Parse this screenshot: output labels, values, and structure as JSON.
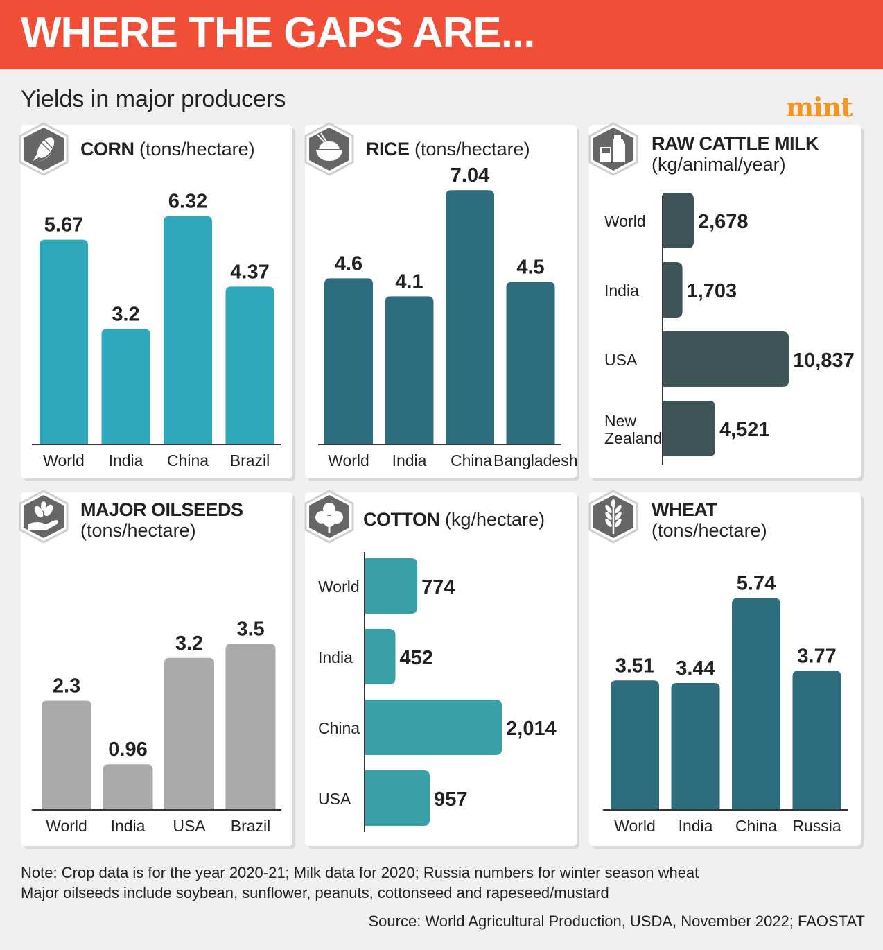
{
  "header": {
    "title": "WHERE THE GAPS ARE...",
    "subtitle": "Yields in major producers",
    "brand": "mint"
  },
  "colors": {
    "banner": "#f04e37",
    "brand": "#f7941d",
    "corn": "#2ea8b8",
    "rice": "#2e6d7e",
    "milk": "#3f5459",
    "oilseeds": "#aaaaaa",
    "cotton": "#38a0a6",
    "wheat": "#2e6d7e"
  },
  "panels": {
    "corn": {
      "title_bold": "CORN",
      "title_unit": "(tons/hectare)",
      "icon": "corn-icon"
    },
    "rice": {
      "title_bold": "RICE",
      "title_unit": "(tons/hectare)",
      "icon": "rice-bowl-icon"
    },
    "milk": {
      "title_bold": "RAW CATTLE MILK",
      "title_unit": "(kg/animal/year)",
      "icon": "milk-icon"
    },
    "oilseeds": {
      "title_bold": "MAJOR OILSEEDS",
      "title_unit": "(tons/hectare)",
      "icon": "seedling-hand-icon"
    },
    "cotton": {
      "title_bold": "COTTON",
      "title_unit": "(kg/hectare)",
      "icon": "cotton-flower-icon"
    },
    "wheat": {
      "title_bold": "WHEAT",
      "title_unit": "(tons/hectare)",
      "icon": "wheat-icon"
    }
  },
  "chart_data": [
    {
      "id": "corn",
      "type": "bar",
      "categories": [
        "World",
        "India",
        "China",
        "Brazil"
      ],
      "values": [
        5.67,
        3.2,
        6.32,
        4.37
      ],
      "labels": [
        "5.67",
        "3.2",
        "6.32",
        "4.37"
      ]
    },
    {
      "id": "rice",
      "type": "bar",
      "categories": [
        "World",
        "India",
        "China",
        "Bangladesh"
      ],
      "values": [
        4.6,
        4.1,
        7.04,
        4.5
      ],
      "labels": [
        "4.6",
        "4.1",
        "7.04",
        "4.5"
      ]
    },
    {
      "id": "milk",
      "type": "bar",
      "orientation": "horizontal",
      "categories": [
        "World",
        "India",
        "USA",
        "New Zealand"
      ],
      "values": [
        2678,
        1703,
        10837,
        4521
      ],
      "labels": [
        "2,678",
        "1,703",
        "10,837",
        "4,521"
      ]
    },
    {
      "id": "oilseeds",
      "type": "bar",
      "categories": [
        "World",
        "India",
        "USA",
        "Brazil"
      ],
      "values": [
        2.3,
        0.96,
        3.2,
        3.5
      ],
      "labels": [
        "2.3",
        "0.96",
        "3.2",
        "3.5"
      ]
    },
    {
      "id": "cotton",
      "type": "bar",
      "orientation": "horizontal",
      "categories": [
        "World",
        "India",
        "China",
        "USA"
      ],
      "values": [
        774,
        452,
        2014,
        957
      ],
      "labels": [
        "774",
        "452",
        "2,014",
        "957"
      ]
    },
    {
      "id": "wheat",
      "type": "bar",
      "categories": [
        "World",
        "India",
        "China",
        "Russia"
      ],
      "values": [
        3.51,
        3.44,
        5.74,
        3.77
      ],
      "labels": [
        "3.51",
        "3.44",
        "5.74",
        "3.77"
      ]
    }
  ],
  "footer": {
    "note_line1": "Note: Crop data is for the year 2020-21; Milk data for 2020; Russia numbers for winter season wheat",
    "note_line2": "Major oilseeds include soybean, sunflower, peanuts, cottonseed and rapeseed/mustard",
    "source": "Source: World Agricultural Production, USDA, November 2022; FAOSTAT"
  }
}
